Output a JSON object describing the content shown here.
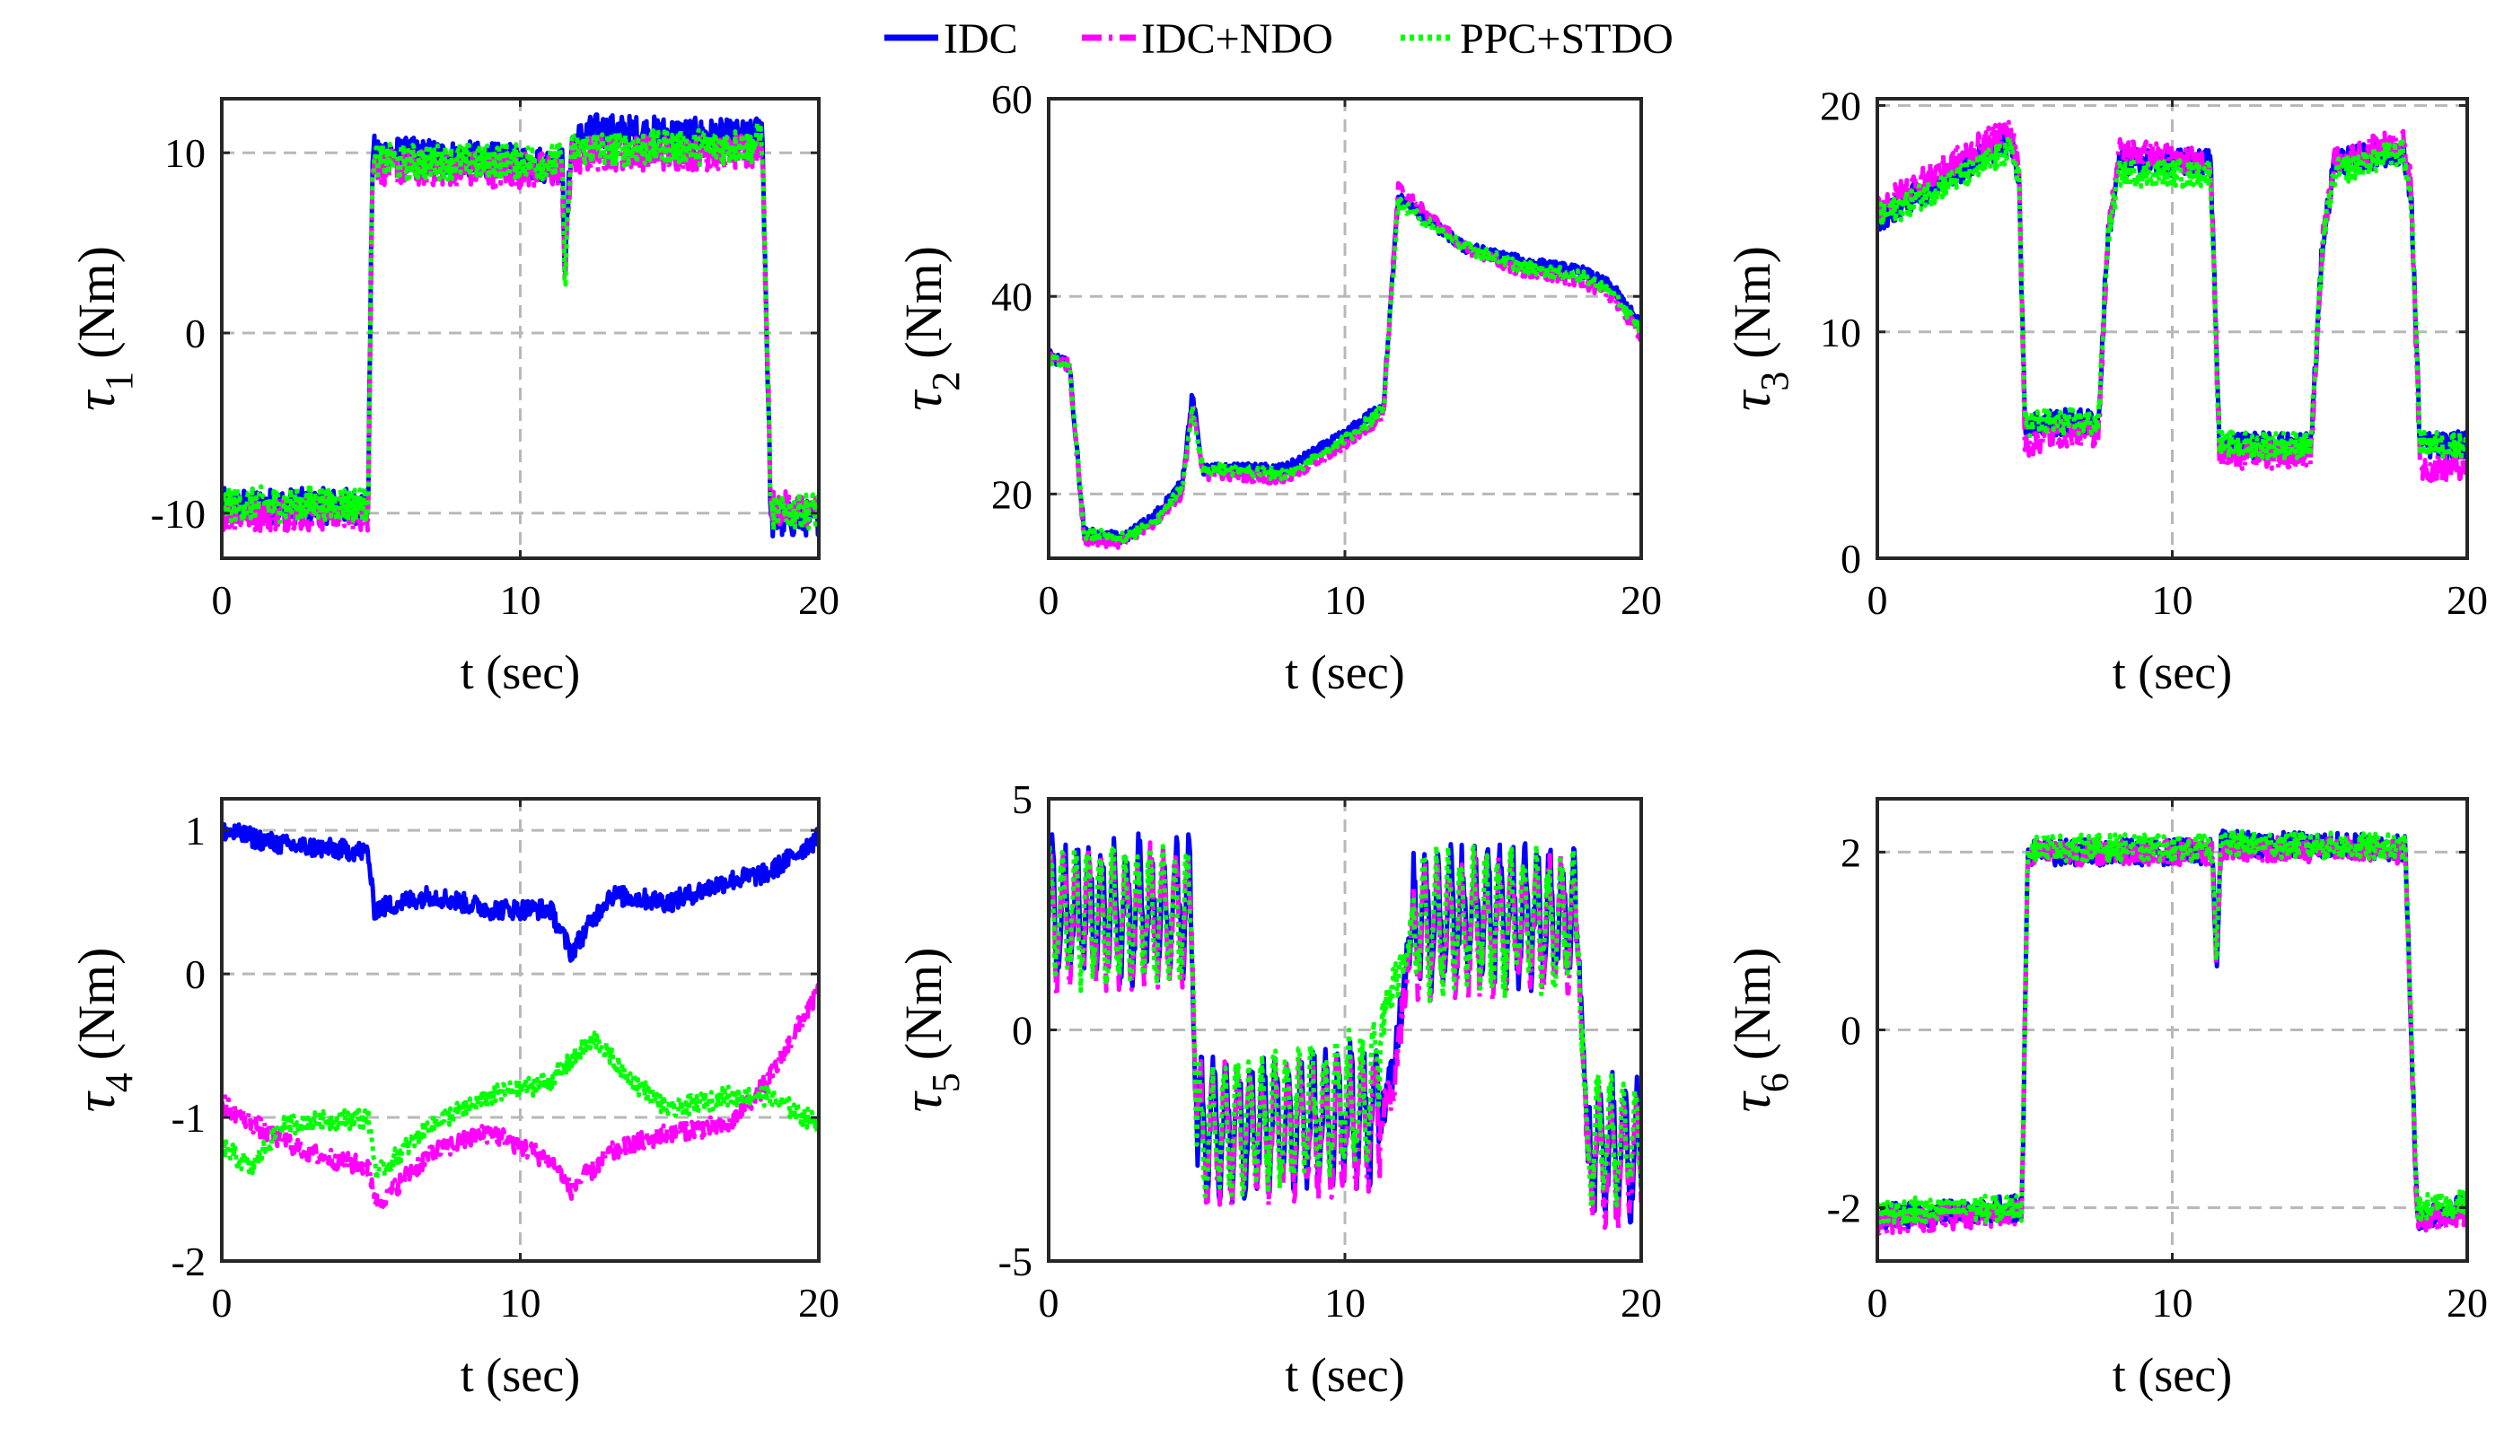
{
  "legend": [
    {
      "name": "IDC",
      "color": "#0000ff",
      "dash": "solid"
    },
    {
      "name": "IDC+NDO",
      "color": "#ff00ff",
      "dash": "dashdot"
    },
    {
      "name": "PPC+STDO",
      "color": "#00ff00",
      "dash": "dotted"
    }
  ],
  "chart_data": [
    {
      "type": "line",
      "title": "",
      "xlabel": "t (sec)",
      "ylabel_sym": "τ",
      "ylabel_sub": "1",
      "ylabel_unit": "(Nm)",
      "xlim": [
        0,
        20
      ],
      "ylim": [
        -12.5,
        13
      ],
      "xticks": [
        0,
        10,
        20
      ],
      "yticks": [
        -10,
        0,
        10
      ],
      "ytick_labels": [
        "-10",
        "0",
        "10"
      ],
      "grid": true,
      "noise": 1.0,
      "series": [
        {
          "name": "IDC",
          "x": [
            0,
            4.9,
            5.05,
            11.4,
            11.5,
            11.7,
            12.5,
            17.8,
            18.1,
            18.4,
            20
          ],
          "y": [
            -9.6,
            -9.6,
            10,
            9.3,
            3.5,
            10.5,
            11.2,
            10.8,
            11.5,
            -10.5,
            -10.2
          ]
        },
        {
          "name": "IDC+NDO",
          "x": [
            0,
            4.9,
            5.05,
            11.4,
            11.5,
            11.7,
            12.5,
            17.8,
            18.1,
            18.4,
            20
          ],
          "y": [
            -10.0,
            -10.0,
            9.2,
            9.0,
            3.0,
            9.6,
            10.0,
            10.0,
            10.7,
            -9.7,
            -10.0
          ]
        },
        {
          "name": "PPC+STDO",
          "x": [
            0,
            4.9,
            5.05,
            11.4,
            11.5,
            11.7,
            12.5,
            17.8,
            18.1,
            18.4,
            20
          ],
          "y": [
            -9.5,
            -9.5,
            9.5,
            9.5,
            3.0,
            10.2,
            10.2,
            10.4,
            11.0,
            -10.0,
            -9.8
          ]
        }
      ]
    },
    {
      "type": "line",
      "title": "",
      "xlabel": "t (sec)",
      "ylabel_sym": "τ",
      "ylabel_sub": "2",
      "ylabel_unit": "(Nm)",
      "xlim": [
        0,
        20
      ],
      "ylim": [
        13.5,
        60
      ],
      "xticks": [
        0,
        10,
        20
      ],
      "yticks": [
        20,
        40,
        60
      ],
      "ytick_labels": [
        "20",
        "40",
        "60"
      ],
      "grid": true,
      "noise": 0.6,
      "series": [
        {
          "name": "IDC",
          "x": [
            0,
            0.7,
            1.2,
            2.5,
            3.5,
            4.5,
            4.85,
            5.2,
            6,
            8,
            10,
            11.3,
            11.8,
            14,
            16,
            18,
            19,
            20
          ],
          "y": [
            34,
            33,
            16,
            15.5,
            17.5,
            21,
            30,
            22.5,
            22.5,
            22.5,
            26,
            29,
            50,
            45,
            43.5,
            42.5,
            41,
            37
          ]
        },
        {
          "name": "IDC+NDO",
          "x": [
            0,
            0.7,
            1.2,
            2.5,
            3.5,
            4.5,
            4.85,
            5.2,
            6,
            8,
            10,
            11.3,
            11.8,
            14,
            16,
            18,
            19,
            20
          ],
          "y": [
            34,
            33,
            15.5,
            15,
            17,
            20,
            29,
            22,
            22,
            21.5,
            25,
            28,
            51,
            45,
            42.5,
            41.5,
            40,
            36
          ]
        },
        {
          "name": "PPC+STDO",
          "x": [
            0,
            0.7,
            1.2,
            2.5,
            3.5,
            4.5,
            4.85,
            5.2,
            6,
            8,
            10,
            11.3,
            11.8,
            14,
            16,
            18,
            19,
            20
          ],
          "y": [
            33.5,
            33,
            16,
            15.5,
            17,
            20.5,
            28.5,
            22.5,
            22.5,
            22,
            25.5,
            28.5,
            49.5,
            45,
            43,
            42,
            40.5,
            36.5
          ]
        }
      ]
    },
    {
      "type": "line",
      "title": "",
      "xlabel": "t (sec)",
      "ylabel_sym": "τ",
      "ylabel_sub": "3",
      "ylabel_unit": "(Nm)",
      "xlim": [
        0,
        20
      ],
      "ylim": [
        0,
        20.3
      ],
      "xticks": [
        0,
        10,
        20
      ],
      "yticks": [
        0,
        10,
        20
      ],
      "ytick_labels": [
        "0",
        "10",
        "20"
      ],
      "grid": true,
      "noise": 0.6,
      "series": [
        {
          "name": "IDC",
          "x": [
            0,
            4.5,
            4.8,
            5.0,
            6,
            7.5,
            7.8,
            8.2,
            11.3,
            11.6,
            12,
            14.7,
            15.1,
            15.5,
            17.8,
            18.1,
            18.4,
            20
          ],
          "y": [
            15,
            18.5,
            17,
            6,
            6,
            6,
            14,
            17.5,
            17.5,
            5,
            5,
            5,
            14,
            17.5,
            18,
            16,
            5,
            5
          ]
        },
        {
          "name": "IDC+NDO",
          "x": [
            0,
            4.5,
            4.8,
            5.0,
            6,
            7.5,
            7.8,
            8.2,
            11.3,
            11.6,
            12,
            14.7,
            15.1,
            15.5,
            17.8,
            18.1,
            18.4,
            20
          ],
          "y": [
            15.5,
            19,
            17.5,
            5,
            5.5,
            5.5,
            14,
            18,
            17.5,
            4.5,
            4.5,
            4.5,
            14,
            17.5,
            18.5,
            16.5,
            4,
            4
          ]
        },
        {
          "name": "PPC+STDO",
          "x": [
            0,
            4.5,
            4.8,
            5.0,
            6,
            7.5,
            7.8,
            8.2,
            11.3,
            11.6,
            12,
            14.7,
            15.1,
            15.5,
            17.8,
            18.1,
            18.4,
            20
          ],
          "y": [
            15,
            18,
            17,
            6,
            6,
            6,
            14,
            17,
            17,
            5,
            5,
            5,
            14,
            17,
            18,
            16,
            5,
            5
          ]
        }
      ]
    },
    {
      "type": "line",
      "title": "",
      "xlabel": "t (sec)",
      "ylabel_sym": "τ",
      "ylabel_sub": "4",
      "ylabel_unit": "(Nm)",
      "xlim": [
        0,
        20
      ],
      "ylim": [
        -2,
        1.22
      ],
      "xticks": [
        0,
        10,
        20
      ],
      "yticks": [
        -2,
        -1,
        0,
        1
      ],
      "ytick_labels": [
        "-2",
        "-1",
        "0",
        "1"
      ],
      "grid": true,
      "noise": 0.07,
      "series": [
        {
          "name": "IDC",
          "x": [
            0,
            2,
            4.9,
            5.1,
            7,
            9,
            11,
            11.7,
            13,
            15,
            17,
            18.3,
            20
          ],
          "y": [
            1.0,
            0.9,
            0.85,
            0.45,
            0.55,
            0.45,
            0.45,
            0.15,
            0.55,
            0.5,
            0.65,
            0.7,
            0.95
          ]
        },
        {
          "name": "IDC+NDO",
          "x": [
            0,
            1.5,
            3,
            4.9,
            5.2,
            7,
            9,
            11,
            11.7,
            13,
            15,
            17,
            18.3,
            19.5,
            20
          ],
          "y": [
            -0.9,
            -1.1,
            -1.25,
            -1.35,
            -1.6,
            -1.25,
            -1.1,
            -1.3,
            -1.5,
            -1.25,
            -1.1,
            -1.05,
            -0.75,
            -0.3,
            -0.1
          ]
        },
        {
          "name": "PPC+STDO",
          "x": [
            0,
            1,
            2,
            4.9,
            5.2,
            7,
            9,
            11,
            12.5,
            13.5,
            15,
            17,
            18.3,
            20
          ],
          "y": [
            -1.2,
            -1.35,
            -1.05,
            -1.0,
            -1.4,
            -1.05,
            -0.85,
            -0.75,
            -0.45,
            -0.7,
            -0.95,
            -0.85,
            -0.85,
            -1.05
          ]
        }
      ]
    },
    {
      "type": "line",
      "title": "",
      "xlabel": "t (sec)",
      "ylabel_sym": "τ",
      "ylabel_sub": "5",
      "ylabel_unit": "(Nm)",
      "xlim": [
        0,
        20
      ],
      "ylim": [
        -5,
        5
      ],
      "xticks": [
        0,
        10,
        20
      ],
      "yticks": [
        -5,
        0,
        5
      ],
      "ytick_labels": [
        "-5",
        "0",
        "5"
      ],
      "grid": true,
      "noise": 0.5,
      "osc_amp": 1.2,
      "osc_freq": 1.4,
      "series": [
        {
          "name": "IDC",
          "x": [
            0,
            4.8,
            5.0,
            11.2,
            11.6,
            12.3,
            17.8,
            18.2,
            20
          ],
          "y": [
            2.6,
            2.6,
            -2.2,
            -1.8,
            -1.0,
            2.4,
            2.5,
            -2.5,
            -2.6
          ]
        },
        {
          "name": "IDC+NDO",
          "x": [
            0,
            4.8,
            5.0,
            11.2,
            11.6,
            12.3,
            17.8,
            18.2,
            20
          ],
          "y": [
            2.4,
            2.4,
            -2.3,
            -2.0,
            -1.4,
            2.2,
            2.3,
            -2.8,
            -2.8
          ]
        },
        {
          "name": "PPC+STDO",
          "x": [
            0,
            4.8,
            5.0,
            10.8,
            11.2,
            12.3,
            17.8,
            18.2,
            20
          ],
          "y": [
            2.5,
            2.5,
            -2.2,
            -1.5,
            0.0,
            2.3,
            2.4,
            -2.4,
            -2.4
          ]
        }
      ]
    },
    {
      "type": "line",
      "title": "",
      "xlabel": "t (sec)",
      "ylabel_sym": "τ",
      "ylabel_sub": "6",
      "ylabel_unit": "(Nm)",
      "xlim": [
        0,
        20
      ],
      "ylim": [
        -2.6,
        2.6
      ],
      "xticks": [
        0,
        10,
        20
      ],
      "yticks": [
        -2,
        0,
        2
      ],
      "ytick_labels": [
        "-2",
        "0",
        "2"
      ],
      "grid": true,
      "noise": 0.15,
      "series": [
        {
          "name": "IDC",
          "x": [
            0,
            4.9,
            5.1,
            11.35,
            11.5,
            11.65,
            17.9,
            18.3,
            20
          ],
          "y": [
            -2.1,
            -2.0,
            2.0,
            2.0,
            0.7,
            2.1,
            2.05,
            -2.1,
            -2.0
          ]
        },
        {
          "name": "IDC+NDO",
          "x": [
            0,
            4.9,
            5.1,
            11.35,
            11.5,
            11.65,
            17.9,
            18.3,
            20
          ],
          "y": [
            -2.15,
            -2.05,
            2.0,
            2.0,
            0.75,
            2.05,
            2.0,
            -2.15,
            -2.05
          ]
        },
        {
          "name": "PPC+STDO",
          "x": [
            0,
            4.9,
            5.1,
            11.35,
            11.5,
            11.65,
            17.9,
            18.3,
            20
          ],
          "y": [
            -2.05,
            -2.0,
            2.05,
            2.05,
            0.8,
            2.1,
            2.05,
            -2.0,
            -1.95
          ]
        }
      ]
    }
  ]
}
